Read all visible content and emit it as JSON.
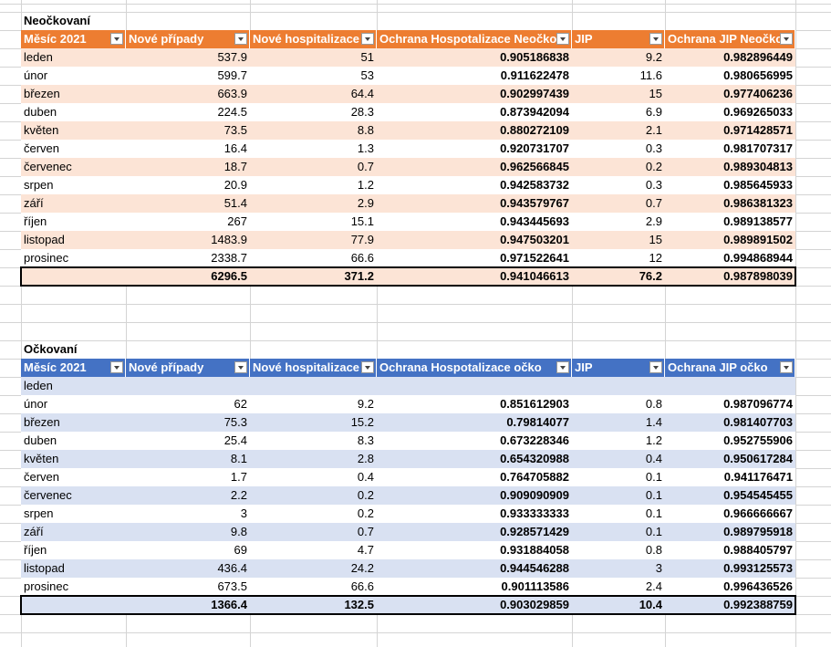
{
  "tables": [
    {
      "title": "Neočkovaní",
      "headers": [
        "Měsíc 2021",
        "Nové případy",
        "Nové hospitalizace",
        "Ochrana Hospotalizace Neočko",
        "JIP",
        "Ochrana JIP Neočko"
      ],
      "rows": [
        [
          "leden",
          537.9,
          51,
          0.905186838,
          9.2,
          0.982896449
        ],
        [
          "únor",
          599.7,
          53,
          0.911622478,
          11.6,
          0.980656995
        ],
        [
          "březen",
          663.9,
          64.4,
          0.902997439,
          15,
          0.977406236
        ],
        [
          "duben",
          224.5,
          28.3,
          0.873942094,
          6.9,
          0.969265033
        ],
        [
          "květen",
          73.5,
          8.8,
          0.880272109,
          2.1,
          0.971428571
        ],
        [
          "červen",
          16.4,
          1.3,
          0.920731707,
          0.3,
          0.981707317
        ],
        [
          "červenec",
          18.7,
          0.7,
          0.962566845,
          0.2,
          0.989304813
        ],
        [
          "srpen",
          20.9,
          1.2,
          0.942583732,
          0.3,
          0.985645933
        ],
        [
          "září",
          51.4,
          2.9,
          0.943579767,
          0.7,
          0.986381323
        ],
        [
          "říjen",
          267,
          15.1,
          0.943445693,
          2.9,
          0.989138577
        ],
        [
          "listopad",
          1483.9,
          77.9,
          0.947503201,
          15,
          0.989891502
        ],
        [
          "prosinec",
          2338.7,
          66.6,
          0.971522641,
          12,
          0.994868944
        ]
      ],
      "total": [
        6296.5,
        371.2,
        0.941046613,
        76.2,
        0.987898039
      ]
    },
    {
      "title": "Očkovaní",
      "headers": [
        "Měsíc 2021",
        "Nové případy",
        "Nové hospitalizace",
        "Ochrana Hospotalizace očko",
        "JIP",
        "Ochrana JIP očko"
      ],
      "rows": [
        [
          "leden"
        ],
        [
          "únor",
          62,
          9.2,
          0.851612903,
          0.8,
          0.987096774
        ],
        [
          "březen",
          75.3,
          15.2,
          0.79814077,
          1.4,
          0.981407703
        ],
        [
          "duben",
          25.4,
          8.3,
          0.673228346,
          1.2,
          0.952755906
        ],
        [
          "květen",
          8.1,
          2.8,
          0.654320988,
          0.4,
          0.950617284
        ],
        [
          "červen",
          1.7,
          0.4,
          0.764705882,
          0.1,
          0.941176471
        ],
        [
          "červenec",
          2.2,
          0.2,
          0.909090909,
          0.1,
          0.954545455
        ],
        [
          "srpen",
          3,
          0.2,
          0.933333333,
          0.1,
          0.966666667
        ],
        [
          "září",
          9.8,
          0.7,
          0.928571429,
          0.1,
          0.989795918
        ],
        [
          "říjen",
          69,
          4.7,
          0.931884058,
          0.8,
          0.988405797
        ],
        [
          "listopad",
          436.4,
          24.2,
          0.944546288,
          3,
          0.993125573
        ],
        [
          "prosinec",
          673.5,
          66.6,
          0.901113586,
          2.4,
          0.996436526
        ]
      ],
      "total": [
        1366.4,
        132.5,
        0.903029859,
        10.4,
        0.992388759
      ]
    }
  ]
}
